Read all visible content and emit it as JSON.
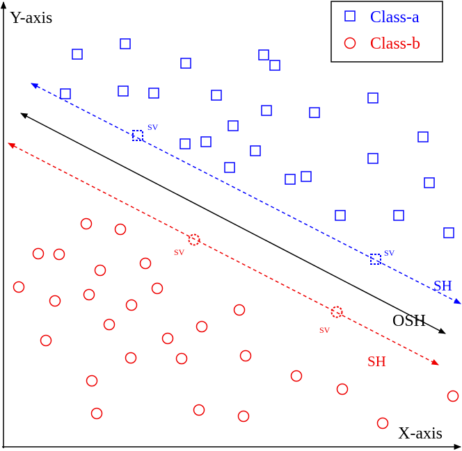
{
  "axes": {
    "y_label": "Y-axis",
    "x_label": "X-axis"
  },
  "legend": [
    {
      "label": "Class-a"
    },
    {
      "label": "Class-b"
    }
  ],
  "annotations": {
    "sv": [
      "SV",
      "SV",
      "SV",
      "SV"
    ],
    "sh": [
      "SH",
      "SH"
    ],
    "osh": "OSH"
  }
}
